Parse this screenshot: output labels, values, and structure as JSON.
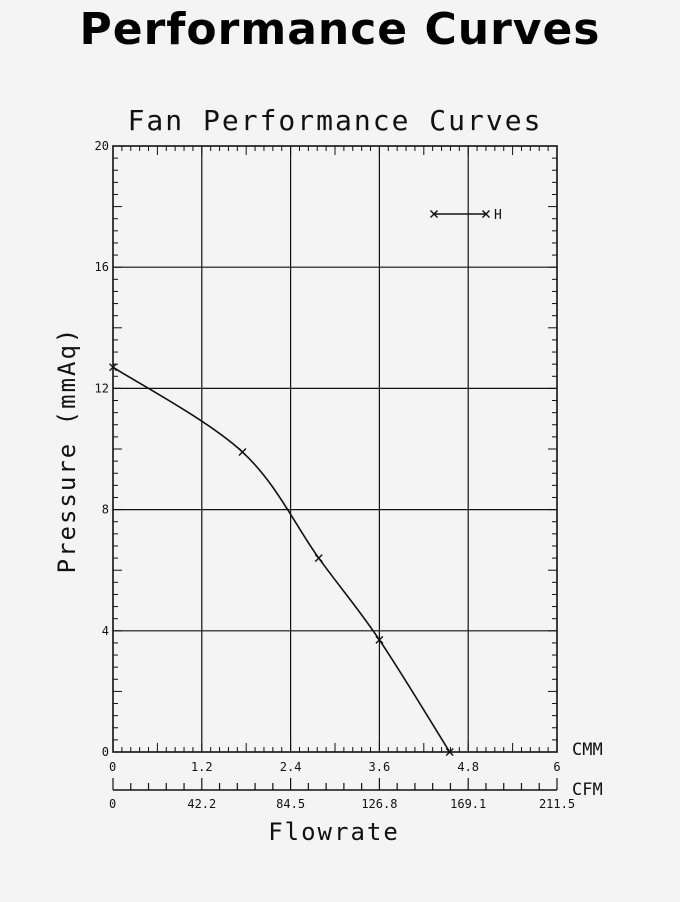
{
  "page": {
    "heading": "Performance Curves"
  },
  "chart_data": {
    "type": "line",
    "title": "Fan Performance Curves",
    "xlabel": "Flowrate",
    "ylabel": "Pressure (mmAq)",
    "xlim": [
      0,
      6
    ],
    "ylim": [
      0,
      20
    ],
    "x_unit": "CMM",
    "x_unit_secondary": "CFM",
    "x_ticks": [
      "0",
      "1.2",
      "2.4",
      "3.6",
      "4.8",
      "6"
    ],
    "x_ticks_secondary": [
      "0",
      "42.2",
      "84.5",
      "126.8",
      "169.1",
      "211.5"
    ],
    "y_ticks": [
      "0",
      "4",
      "8",
      "12",
      "16",
      "20"
    ],
    "grid": true,
    "legend_position": "top-right",
    "series": [
      {
        "name": "H",
        "marker": "x",
        "x": [
          0,
          1.75,
          2.78,
          3.6,
          4.55
        ],
        "y": [
          12.7,
          9.9,
          6.4,
          3.7,
          0
        ]
      }
    ]
  }
}
